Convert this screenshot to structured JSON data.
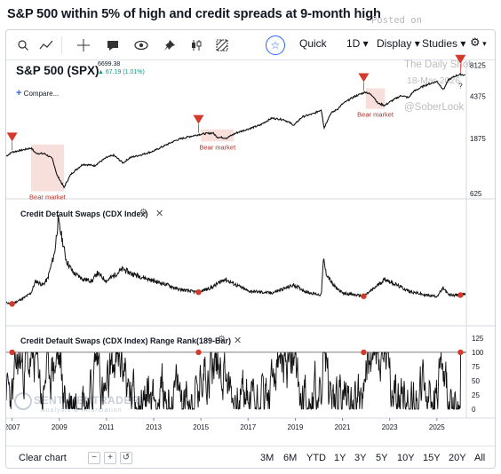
{
  "headline": "S&P 500 within 5% of high and credit spreads at 9-month high",
  "toolbar": {
    "items": [
      "Quick",
      "1D",
      "Display",
      "Studies"
    ],
    "icons": [
      "search-icon",
      "line-tool-icon",
      "crosshair-icon",
      "comment-icon",
      "eye-icon",
      "pin-icon",
      "candles-icon",
      "hatch-icon",
      "star-icon",
      "gear-icon",
      "chevron-down-icon"
    ]
  },
  "watermark": {
    "posted_on": "Posted on",
    "source": "The Daily Shot",
    "date": "18-Mar-2026",
    "handle": "@SoberLook",
    "logo": "SENTIMENTRADER",
    "logo_sub": "Analysis & Information"
  },
  "price_panel": {
    "symbol": "S&P 500 (SPX)",
    "last": "6699.38",
    "change": "67.19 (1.01%)",
    "compare": "Compare..."
  },
  "cdx_panel": {
    "label": "Credit Default Swaps (CDX Index)"
  },
  "rank_panel": {
    "label": "Credit Default Swaps (CDX Index) Range Rank(189-Bar)"
  },
  "bottom": {
    "clear": "Clear chart",
    "minus": "−",
    "plus": "+",
    "ranges": [
      "3M",
      "6M",
      "YTD",
      "1Y",
      "3Y",
      "5Y",
      "10Y",
      "15Y",
      "20Y",
      "All"
    ]
  },
  "chart_data": [
    {
      "type": "line",
      "title": "S&P 500 (SPX)",
      "scale": "log",
      "yticks": [
        625,
        1875,
        4375,
        8125
      ],
      "ylim": [
        560,
        9000
      ],
      "xlim": [
        2006.75,
        2026.25
      ],
      "xticks": [
        "2007",
        "2009",
        "2011",
        "2013",
        "2015",
        "2017",
        "2019",
        "2021",
        "2023",
        "2025"
      ],
      "x": [
        2006.75,
        2007.0,
        2007.5,
        2007.8,
        2008.0,
        2008.4,
        2008.7,
        2008.9,
        2009.2,
        2009.5,
        2010.0,
        2010.5,
        2011.0,
        2011.3,
        2011.7,
        2012.0,
        2012.5,
        2013.0,
        2013.5,
        2014.0,
        2014.5,
        2015.0,
        2015.5,
        2015.7,
        2016.1,
        2016.5,
        2017.0,
        2017.5,
        2018.0,
        2018.5,
        2018.95,
        2019.3,
        2019.8,
        2020.1,
        2020.22,
        2020.5,
        2020.8,
        2021.0,
        2021.5,
        2021.99,
        2022.3,
        2022.5,
        2022.8,
        2023.0,
        2023.5,
        2023.8,
        2024.0,
        2024.5,
        2025.0,
        2025.28,
        2025.5,
        2025.8,
        2026.0,
        2026.2
      ],
      "values": [
        1320,
        1430,
        1500,
        1550,
        1400,
        1380,
        1250,
        900,
        700,
        920,
        1120,
        1090,
        1280,
        1340,
        1150,
        1280,
        1360,
        1460,
        1640,
        1830,
        1950,
        2050,
        2100,
        1930,
        1900,
        2100,
        2270,
        2450,
        2820,
        2750,
        2450,
        2900,
        3100,
        3350,
        2300,
        3100,
        3400,
        3750,
        4350,
        4780,
        4400,
        3800,
        3650,
        3900,
        4450,
        4250,
        4800,
        5450,
        5900,
        5000,
        6100,
        6600,
        6800,
        6699
      ],
      "annotations": [
        {
          "label": "Bear market",
          "from": 2007.8,
          "to": 2009.2
        },
        {
          "label": "Bear market",
          "from": 2015.0,
          "to": 2016.4
        },
        {
          "label": "Bear market",
          "from": 2021.99,
          "to": 2022.8
        }
      ],
      "markers": [
        2007.0,
        2014.9,
        2021.9,
        2026.0
      ],
      "marker_note": "?"
    },
    {
      "type": "line",
      "title": "Credit Default Swaps (CDX Index)",
      "xlim": [
        2006.75,
        2026.25
      ],
      "x": [
        2006.75,
        2007.0,
        2007.5,
        2007.8,
        2008.0,
        2008.3,
        2008.5,
        2008.8,
        2008.95,
        2009.1,
        2009.3,
        2009.6,
        2010.0,
        2010.4,
        2010.6,
        2011.0,
        2011.7,
        2012.0,
        2012.5,
        2013.0,
        2013.6,
        2014.0,
        2014.5,
        2014.9,
        2015.5,
        2016.0,
        2016.5,
        2017.0,
        2018.0,
        2018.95,
        2019.5,
        2020.1,
        2020.2,
        2020.3,
        2020.6,
        2021.0,
        2021.9,
        2022.3,
        2022.6,
        2022.8,
        2023.3,
        2023.8,
        2024.5,
        2025.0,
        2025.28,
        2025.5,
        2026.0,
        2026.2
      ],
      "values": [
        36,
        33,
        48,
        60,
        90,
        80,
        95,
        160,
        240,
        200,
        140,
        110,
        95,
        90,
        110,
        90,
        120,
        110,
        100,
        90,
        80,
        70,
        65,
        62,
        75,
        95,
        80,
        65,
        60,
        80,
        62,
        55,
        145,
        110,
        80,
        60,
        52,
        70,
        85,
        95,
        80,
        65,
        55,
        52,
        72,
        55,
        55,
        58
      ],
      "markers": [
        2007.0,
        2014.9,
        2021.9,
        2026.0
      ]
    },
    {
      "type": "line",
      "title": "Credit Default Swaps (CDX Index) Range Rank(189-Bar)",
      "yticks": [
        0,
        25,
        50,
        75,
        100,
        125
      ],
      "ylim": [
        -8,
        128
      ],
      "xlim": [
        2006.75,
        2026.25
      ],
      "reference_line": 100,
      "markers": [
        2007.0,
        2014.9,
        2021.9,
        2026.0
      ]
    }
  ]
}
